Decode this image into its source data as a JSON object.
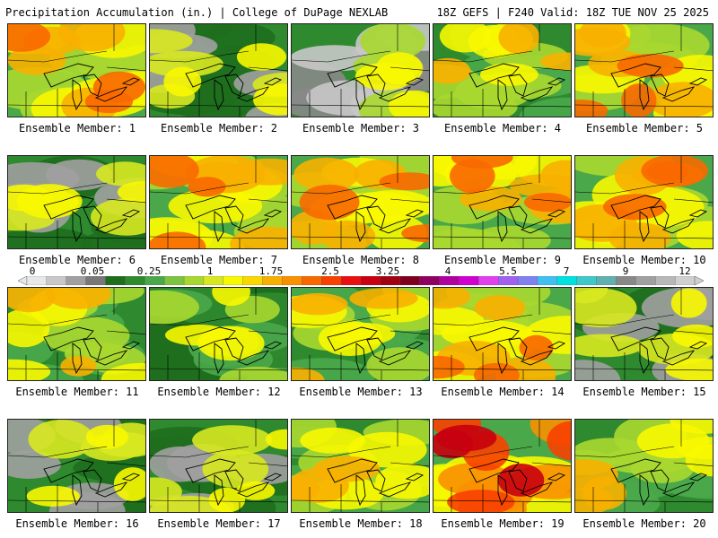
{
  "header": {
    "left": "Precipitation Accumulation (in.) | College of DuPage NEXLAB",
    "right": "18Z GEFS | F240 Valid: 18Z TUE NOV 25 2025"
  },
  "members": [
    {
      "label": "Ensemble Member: 1",
      "scheme": "yellow-red"
    },
    {
      "label": "Ensemble Member: 2",
      "scheme": "green-grey"
    },
    {
      "label": "Ensemble Member: 3",
      "scheme": "grey-green"
    },
    {
      "label": "Ensemble Member: 4",
      "scheme": "green-yellow"
    },
    {
      "label": "Ensemble Member: 5",
      "scheme": "yellow-red"
    },
    {
      "label": "Ensemble Member: 6",
      "scheme": "green-grey"
    },
    {
      "label": "Ensemble Member: 7",
      "scheme": "yellow-red"
    },
    {
      "label": "Ensemble Member: 8",
      "scheme": "yellow-red"
    },
    {
      "label": "Ensemble Member: 9",
      "scheme": "yellow-red"
    },
    {
      "label": "Ensemble Member: 10",
      "scheme": "yellow-red"
    },
    {
      "label": "Ensemble Member: 11",
      "scheme": "green-yellow"
    },
    {
      "label": "Ensemble Member: 12",
      "scheme": "green"
    },
    {
      "label": "Ensemble Member: 13",
      "scheme": "green-yellow"
    },
    {
      "label": "Ensemble Member: 14",
      "scheme": "yellow-red"
    },
    {
      "label": "Ensemble Member: 15",
      "scheme": "green-grey"
    },
    {
      "label": "Ensemble Member: 16",
      "scheme": "green-grey"
    },
    {
      "label": "Ensemble Member: 17",
      "scheme": "green-grey"
    },
    {
      "label": "Ensemble Member: 18",
      "scheme": "green-yellow"
    },
    {
      "label": "Ensemble Member: 19",
      "scheme": "red"
    },
    {
      "label": "Ensemble Member: 20",
      "scheme": "green-yellow"
    }
  ],
  "colorbar": {
    "labels": [
      "0",
      "0.05",
      "0.25",
      "1",
      "1.75",
      "2.5",
      "3.25",
      "4",
      "5.5",
      "7",
      "9",
      "12"
    ],
    "colors": [
      "#e8e8e8",
      "#c8c8c8",
      "#a0a0a0",
      "#787878",
      "#1e6e1e",
      "#2f8a2f",
      "#4aa84a",
      "#7cc440",
      "#a8d830",
      "#d8e820",
      "#f8f800",
      "#f8d800",
      "#f8b000",
      "#f89000",
      "#f86800",
      "#f84000",
      "#e81010",
      "#c80010",
      "#a00010",
      "#800020",
      "#900060",
      "#b000a0",
      "#d000d0",
      "#e040f0",
      "#a060f0",
      "#8080f0",
      "#40c0f0",
      "#00e0e0",
      "#40c8c8",
      "#60b0b0",
      "#888888",
      "#a0a0a0",
      "#b8b8b8",
      "#d0d0d0"
    ]
  }
}
